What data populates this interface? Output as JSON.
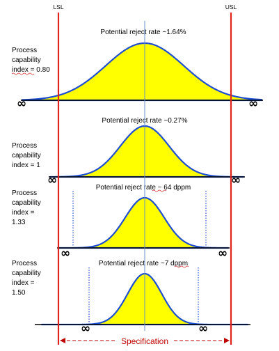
{
  "limits": {
    "lsl": "LSL",
    "usl": "USL",
    "specification": "Specification"
  },
  "infinity_symbol": "∞",
  "colors": {
    "curve_fill": "#ffff00",
    "curve_stroke": "#1f4fd1",
    "limit_line": "#e0241b",
    "spec_text": "#c00000",
    "mean_line": "#6d8fc9",
    "dotted_line": "#1f4fd1"
  },
  "panels": [
    {
      "reject_rate": "Potential reject rate ~1.64%",
      "label_lines": [
        "Process",
        "capability",
        "index  = 0.80"
      ],
      "cpk": 0.8
    },
    {
      "reject_rate": "Potential reject rate ~0.27%",
      "label_lines": [
        "Process",
        "capability",
        "index = 1"
      ],
      "cpk": 1.0
    },
    {
      "reject_rate": "Potential reject rate ~ 64 dppm",
      "label_lines": [
        "Process",
        "capability",
        "index =",
        "1.33"
      ],
      "cpk": 1.33
    },
    {
      "reject_rate": "Potential reject rate ~7 dppm",
      "label_lines": [
        "Process",
        "capability",
        "index =",
        "1.50"
      ],
      "cpk": 1.5
    }
  ]
}
